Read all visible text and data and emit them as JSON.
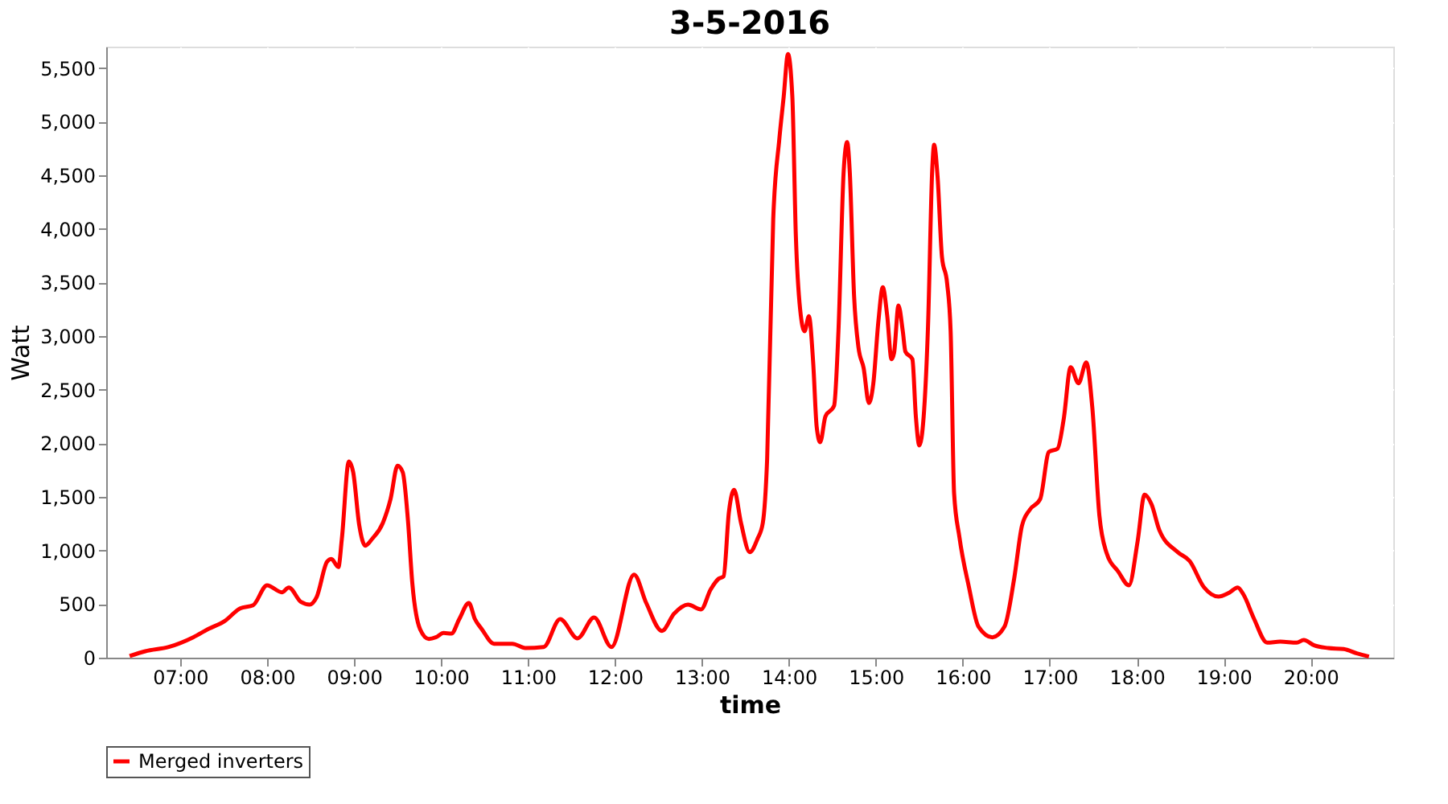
{
  "chart_data": {
    "type": "line",
    "title": "3-5-2016",
    "xlabel": "time",
    "ylabel": "Watt",
    "xlim": [
      6.15,
      20.95
    ],
    "xticks": [
      {
        "value": 7,
        "label": "07:00"
      },
      {
        "value": 8,
        "label": "08:00"
      },
      {
        "value": 9,
        "label": "09:00"
      },
      {
        "value": 10,
        "label": "10:00"
      },
      {
        "value": 11,
        "label": "11:00"
      },
      {
        "value": 12,
        "label": "12:00"
      },
      {
        "value": 13,
        "label": "13:00"
      },
      {
        "value": 14,
        "label": "14:00"
      },
      {
        "value": 15,
        "label": "15:00"
      },
      {
        "value": 16,
        "label": "16:00"
      },
      {
        "value": 17,
        "label": "17:00"
      },
      {
        "value": 18,
        "label": "18:00"
      },
      {
        "value": 19,
        "label": "19:00"
      },
      {
        "value": 20,
        "label": "20:00"
      }
    ],
    "ylim": [
      0,
      5700
    ],
    "yticks": [
      0,
      500,
      {
        "value": 1000,
        "label": "1,000"
      },
      {
        "value": 1500,
        "label": "1,500"
      },
      {
        "value": 2000,
        "label": "2,000"
      },
      {
        "value": 2500,
        "label": "2,500"
      },
      {
        "value": 3000,
        "label": "3,000"
      },
      {
        "value": 3500,
        "label": "3,500"
      },
      {
        "value": 4000,
        "label": "4,000"
      },
      {
        "value": 4500,
        "label": "4,500"
      },
      {
        "value": 5000,
        "label": "5,000"
      },
      {
        "value": 5500,
        "label": "5,500"
      }
    ],
    "grid": true,
    "legend": "bottom",
    "marker": "none",
    "line_style": "solid",
    "x": [
      6.42,
      6.6,
      6.87,
      7.15,
      7.33,
      7.51,
      7.69,
      7.84,
      8.0,
      8.17,
      8.25,
      8.39,
      8.49,
      8.57,
      8.69,
      8.74,
      8.82,
      8.86,
      8.94,
      8.99,
      9.06,
      9.13,
      9.21,
      9.33,
      9.42,
      9.5,
      9.56,
      9.62,
      9.67,
      9.76,
      9.86,
      9.94,
      10.03,
      10.12,
      10.21,
      10.32,
      10.39,
      10.47,
      10.61,
      10.82,
      10.97,
      11.18,
      11.37,
      11.57,
      11.76,
      11.96,
      12.22,
      12.36,
      12.54,
      12.68,
      12.84,
      12.99,
      13.1,
      13.19,
      13.25,
      13.31,
      13.37,
      13.45,
      13.55,
      13.64,
      13.7,
      13.75,
      13.82,
      13.89,
      13.94,
      13.99,
      14.04,
      14.08,
      14.13,
      14.18,
      14.23,
      14.28,
      14.32,
      14.36,
      14.42,
      14.52,
      14.57,
      14.63,
      14.67,
      14.7,
      14.75,
      14.8,
      14.86,
      14.92,
      14.97,
      15.03,
      15.08,
      15.13,
      15.18,
      15.21,
      15.26,
      15.31,
      15.34,
      15.42,
      15.46,
      15.5,
      15.55,
      15.6,
      15.65,
      15.67,
      15.71,
      15.76,
      15.82,
      15.86,
      15.9,
      15.96,
      16.07,
      16.18,
      16.34,
      16.48,
      16.59,
      16.68,
      16.77,
      16.89,
      16.99,
      17.09,
      17.16,
      17.24,
      17.33,
      17.42,
      17.49,
      17.57,
      17.65,
      17.79,
      17.91,
      18.01,
      18.09,
      18.17,
      18.26,
      18.47,
      18.61,
      18.77,
      18.94,
      19.07,
      19.16,
      19.23,
      19.35,
      19.5,
      19.65,
      19.84,
      19.92,
      20.04,
      20.2,
      20.38,
      20.53,
      20.67
    ],
    "series": [
      {
        "name": "Merged inverters",
        "color": "#ff0000",
        "values": [
          15,
          60,
          100,
          190,
          270,
          340,
          460,
          490,
          675,
          610,
          655,
          520,
          495,
          565,
          895,
          920,
          845,
          1110,
          1830,
          1730,
          1235,
          1045,
          1110,
          1255,
          1480,
          1790,
          1730,
          1280,
          695,
          265,
          175,
          190,
          230,
          225,
          360,
          510,
          360,
          265,
          130,
          130,
          90,
          100,
          360,
          180,
          375,
          100,
          775,
          510,
          250,
          410,
          495,
          450,
          635,
          735,
          760,
          1355,
          1565,
          1255,
          985,
          1110,
          1255,
          1850,
          4090,
          4835,
          5230,
          5630,
          5230,
          3940,
          3245,
          3045,
          3185,
          2745,
          2150,
          2010,
          2250,
          2350,
          3045,
          4535,
          4810,
          4535,
          3370,
          2895,
          2700,
          2375,
          2550,
          3145,
          3455,
          3195,
          2785,
          2845,
          3285,
          3045,
          2855,
          2785,
          2250,
          1980,
          2250,
          3095,
          4585,
          4785,
          4485,
          3740,
          3490,
          3045,
          1530,
          1130,
          660,
          290,
          190,
          290,
          735,
          1230,
          1380,
          1480,
          1920,
          1950,
          2225,
          2710,
          2560,
          2755,
          2325,
          1330,
          985,
          800,
          675,
          1085,
          1520,
          1430,
          1190,
          985,
          900,
          660,
          570,
          610,
          655,
          585,
          360,
          140,
          150,
          140,
          165,
          115,
          90,
          80,
          40,
          10
        ]
      }
    ]
  }
}
